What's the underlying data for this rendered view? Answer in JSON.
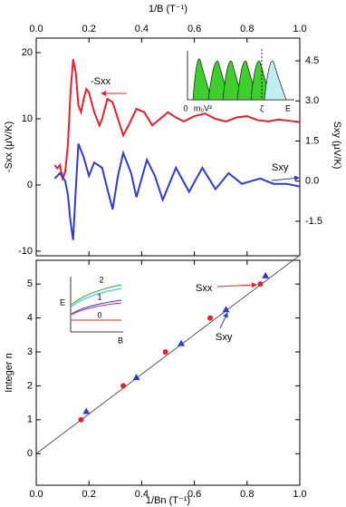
{
  "chart_data": [
    {
      "type": "line",
      "xlabel": "1/B (T⁻¹)",
      "ylabel": "-Sxx (μV/K)",
      "y2label": "Sxy (μV/K)",
      "x_axis": "top",
      "xlim": [
        0,
        1
      ],
      "xticks": [
        {
          "value": 0,
          "label": "0.0"
        },
        0.2,
        0.4,
        0.6,
        0.8,
        {
          "value": 1,
          "label": "1.0"
        }
      ],
      "ylim": [
        -10.7,
        22.2
      ],
      "yticks": [
        -10,
        0,
        10,
        20
      ],
      "y2lim": [
        -2.79,
        5.35
      ],
      "y2ticks": [
        -1.5,
        {
          "value": 0,
          "label": "0.0"
        },
        1.5,
        {
          "value": 3,
          "label": "3.0"
        },
        4.5
      ],
      "series": [
        {
          "name": "-Sxx",
          "color": "#e8202a",
          "x": [
            0.07,
            0.08,
            0.09,
            0.1,
            0.11,
            0.12,
            0.13,
            0.14,
            0.15,
            0.16,
            0.17,
            0.18,
            0.19,
            0.2,
            0.22,
            0.24,
            0.25,
            0.27,
            0.29,
            0.31,
            0.33,
            0.35,
            0.38,
            0.41,
            0.44,
            0.47,
            0.5,
            0.53,
            0.56,
            0.6,
            0.64,
            0.68,
            0.72,
            0.76,
            0.8,
            0.84,
            0.88,
            0.92,
            0.96,
            1.0
          ],
          "values": [
            3,
            2.5,
            3,
            1,
            2,
            6,
            14,
            19,
            17,
            12,
            11,
            13,
            14.5,
            14,
            11,
            9,
            10,
            13,
            12.5,
            10,
            7.5,
            9,
            11.5,
            11,
            9,
            10,
            11,
            10.2,
            9.6,
            10.4,
            10.8,
            10,
            9.6,
            10.2,
            10.4,
            9.8,
            9.6,
            9.9,
            9.7,
            9.5
          ]
        },
        {
          "name": "Sxy",
          "color": "#2f3bd6",
          "axis": "y2",
          "x": [
            0.07,
            0.09,
            0.11,
            0.12,
            0.13,
            0.14,
            0.15,
            0.16,
            0.18,
            0.2,
            0.22,
            0.25,
            0.27,
            0.29,
            0.31,
            0.33,
            0.36,
            0.38,
            0.42,
            0.45,
            0.48,
            0.53,
            0.58,
            0.63,
            0.68,
            0.73,
            0.78,
            0.85,
            0.9,
            0.95,
            1.0
          ],
          "values": [
            0.1,
            0.3,
            0.0,
            -0.5,
            -1.5,
            -2.2,
            -0.3,
            1.4,
            0.9,
            0.2,
            0.7,
            0.5,
            -0.3,
            -1.05,
            0.2,
            1.05,
            0.3,
            -0.6,
            0.8,
            0.2,
            -0.7,
            0.5,
            -0.4,
            0.5,
            -0.3,
            0.3,
            -0.1,
            0.1,
            -0.1,
            -0.1,
            -0.2
          ]
        }
      ],
      "inset": {
        "labels": [
          "0",
          "m₀V²",
          "ζ",
          "E"
        ]
      }
    },
    {
      "type": "scatter",
      "xlabel": "1/Bn (T⁻¹)",
      "ylabel": "Integer n",
      "x_axis": "bottom",
      "xlim": [
        0,
        1
      ],
      "xticks": [
        {
          "value": 0,
          "label": "0.0"
        },
        0.2,
        0.4,
        0.6,
        0.8,
        {
          "value": 1,
          "label": "1.0"
        }
      ],
      "ylim": [
        -0.93,
        5.7
      ],
      "yticks": [
        0,
        1,
        2,
        3,
        4,
        5
      ],
      "series": [
        {
          "name": "Sxx",
          "color": "#e8202a",
          "marker": "circle",
          "x": [
            0.17,
            0.33,
            0.49,
            0.66,
            0.85
          ],
          "values": [
            1,
            2,
            3,
            4,
            5
          ]
        },
        {
          "name": "Sxy",
          "color": "#2f3bd6",
          "marker": "triangle",
          "x": [
            0.19,
            0.38,
            0.55,
            0.72,
            0.87
          ],
          "values": [
            1.25,
            2.25,
            3.25,
            4.25,
            5.25
          ]
        }
      ],
      "fit": {
        "x": [
          0,
          1
        ],
        "values": [
          0,
          5.85
        ]
      },
      "inset": {
        "labels": [
          "E",
          "B",
          "0",
          "1",
          "2"
        ]
      }
    }
  ]
}
